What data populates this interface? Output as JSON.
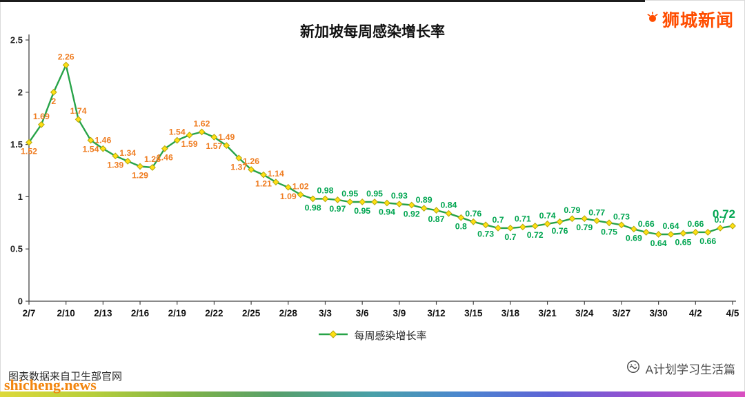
{
  "page": {
    "brand": "狮城新闻",
    "watermark": "shicheng.news",
    "footer_note": "图表数据来自卫生部官网",
    "wechat_account": "A计划学习生活篇"
  },
  "colors": {
    "line": "#27a348",
    "marker_fill": "#ffe014",
    "marker_stroke": "#b3a60c",
    "label_high": "#ef7d22",
    "label_low": "#00a550",
    "brand": "#ff4d00",
    "watermark_orange": "#f2850d",
    "axis": "#444444"
  },
  "chart_data": {
    "type": "line",
    "title": "新加坡每周感染增长率",
    "series": [
      {
        "name": "每周感染增长率",
        "values": [
          1.52,
          1.69,
          2,
          2.26,
          1.74,
          1.54,
          1.46,
          1.39,
          1.34,
          1.29,
          1.28,
          1.46,
          1.54,
          1.59,
          1.62,
          1.57,
          1.49,
          1.37,
          1.26,
          1.21,
          1.14,
          1.09,
          1.02,
          0.98,
          0.98,
          0.97,
          0.95,
          0.95,
          0.95,
          0.94,
          0.93,
          0.92,
          0.89,
          0.87,
          0.84,
          0.8,
          0.76,
          0.73,
          0.7,
          0.7,
          0.71,
          0.72,
          0.74,
          0.76,
          0.79,
          0.79,
          0.77,
          0.75,
          0.73,
          0.69,
          0.66,
          0.64,
          0.64,
          0.65,
          0.66,
          0.66,
          0.7,
          0.72
        ]
      }
    ],
    "x_tick_labels": [
      "2/7",
      "2/10",
      "2/13",
      "2/16",
      "2/19",
      "2/22",
      "2/25",
      "2/28",
      "3/3",
      "3/6",
      "3/9",
      "3/12",
      "3/15",
      "3/18",
      "3/21",
      "3/24",
      "3/27",
      "3/30",
      "4/2",
      "4/5"
    ],
    "tick_every": 3,
    "xlabel": "",
    "ylabel": "",
    "ylim": [
      0,
      2.5
    ],
    "y_ticks": [
      0,
      0.5,
      1,
      1.5,
      2,
      2.5
    ],
    "grid": false,
    "legend_position": "bottom",
    "label_color_threshold": 1.0,
    "last_label_emphasis": true
  }
}
